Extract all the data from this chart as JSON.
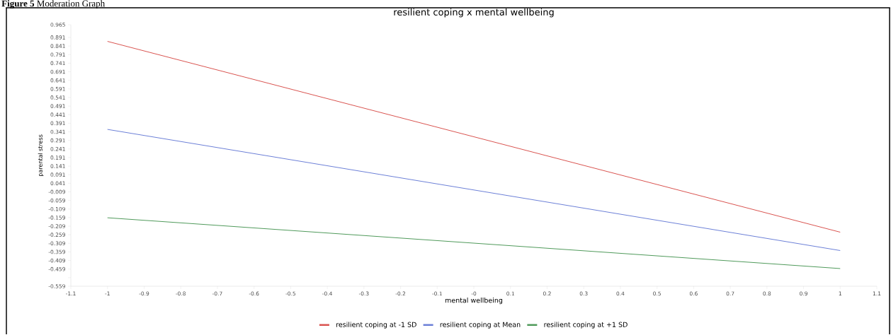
{
  "chart_data": {
    "type": "line",
    "title": "resilient coping x mental wellbeing",
    "xlabel": "mental wellbeing",
    "ylabel": "parental stress",
    "annotations": [
      "**Figure 5** Moderation Graph"
    ],
    "x": [
      -1,
      1
    ],
    "series": [
      {
        "name": "resilient coping at -1 SD",
        "color": "#d9534f",
        "values": [
          0.868,
          -0.244
        ]
      },
      {
        "name": "resilient coping at Mean",
        "color": "#6b7fd7",
        "values": [
          0.355,
          -0.351
        ]
      },
      {
        "name": "resilient coping at +1 SD",
        "color": "#4f9a5a",
        "values": [
          -0.16,
          -0.456
        ]
      }
    ],
    "xlim": [
      -1.1,
      1.1
    ],
    "xticks": [
      -1.1,
      -1,
      -0.9,
      -0.8,
      -0.7,
      -0.6,
      -0.5,
      -0.4,
      -0.3,
      -0.2,
      -0.1,
      {
        "value": 0,
        "label": "-0"
      },
      0.1,
      0.2,
      0.3,
      0.4,
      0.5,
      0.6,
      0.7,
      0.8,
      0.9,
      1,
      1.1
    ],
    "ylim": [
      -0.559,
      0.965
    ],
    "yticks": [
      -0.559,
      {
        "value": -0.509,
        "label": null
      },
      -0.459,
      -0.409,
      -0.359,
      -0.309,
      -0.259,
      -0.209,
      -0.159,
      -0.109,
      -0.059,
      -0.009,
      0.041,
      0.091,
      0.141,
      0.191,
      0.241,
      0.291,
      0.341,
      0.391,
      0.441,
      0.491,
      0.541,
      0.591,
      0.641,
      0.691,
      0.741,
      0.791,
      0.841,
      0.891,
      0.965
    ],
    "grid": false,
    "legend": "bottom",
    "marker": "none",
    "line_style": "solid"
  }
}
